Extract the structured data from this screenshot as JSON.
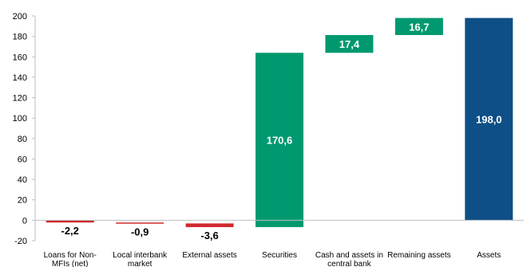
{
  "chart_data": {
    "type": "bar",
    "subtype": "waterfall",
    "title": "",
    "xlabel": "",
    "ylabel": "",
    "ylim": [
      -20,
      200
    ],
    "yticks": [
      -20,
      0,
      20,
      40,
      60,
      80,
      100,
      120,
      140,
      160,
      180,
      200
    ],
    "grid": false,
    "categories": [
      [
        "Loans for Non-",
        "MFIs (net)"
      ],
      [
        "Local interbank",
        "market"
      ],
      [
        "External assets"
      ],
      [
        "Securities"
      ],
      [
        "Cash and assets in",
        "central bank"
      ],
      [
        "Remaining assets"
      ],
      [
        "Assets"
      ]
    ],
    "bars": [
      {
        "label": "-2,2",
        "value": -2.2,
        "start": 0,
        "end": -2.2,
        "kind": "decrease"
      },
      {
        "label": "-0,9",
        "value": -0.9,
        "start": -2.2,
        "end": -3.1,
        "kind": "decrease"
      },
      {
        "label": "-3,6",
        "value": -3.6,
        "start": -3.1,
        "end": -6.7,
        "kind": "decrease"
      },
      {
        "label": "170,6",
        "value": 170.6,
        "start": -6.7,
        "end": 163.9,
        "kind": "increase"
      },
      {
        "label": "17,4",
        "value": 17.4,
        "start": 163.9,
        "end": 181.3,
        "kind": "increase"
      },
      {
        "label": "16,7",
        "value": 16.7,
        "start": 181.3,
        "end": 198.0,
        "kind": "increase"
      },
      {
        "label": "198,0",
        "value": 198.0,
        "start": 0,
        "end": 198.0,
        "kind": "total"
      }
    ],
    "colors": {
      "decrease": "#d02a2e",
      "increase": "#00996f",
      "total": "#0d4f86",
      "label_on_bar": "#ffffff",
      "label_default": "#000000",
      "axis": "#bfbfbf"
    }
  }
}
